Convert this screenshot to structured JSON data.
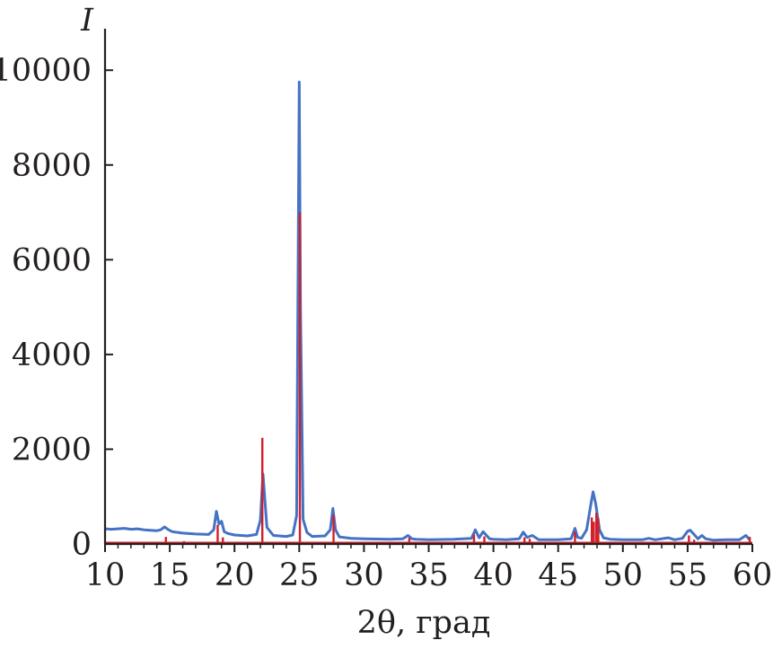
{
  "chart_data": {
    "type": "line",
    "title": "",
    "xlabel": "2θ, град",
    "ylabel": "I",
    "xlim": [
      10,
      60
    ],
    "ylim": [
      0,
      10800
    ],
    "x_ticks": [
      10,
      15,
      20,
      25,
      30,
      35,
      40,
      45,
      50,
      55,
      60
    ],
    "y_ticks": [
      0,
      2000,
      4000,
      6000,
      8000,
      10000
    ],
    "x_tick_labels": [
      "10",
      "15",
      "20",
      "25",
      "30",
      "35",
      "40",
      "45",
      "50",
      "55",
      "60"
    ],
    "y_tick_labels": [
      "0",
      "2000",
      "4000",
      "6000",
      "8000",
      "10000"
    ],
    "grid": false,
    "legend": "none",
    "series": [
      {
        "kind": "line",
        "color": "#4472c4",
        "x": [
          10.0,
          10.5,
          11.0,
          11.5,
          12.0,
          12.5,
          13.0,
          13.5,
          14.0,
          14.3,
          14.6,
          14.9,
          15.2,
          16.0,
          17.0,
          18.0,
          18.4,
          18.6,
          18.8,
          19.0,
          19.2,
          19.5,
          20.0,
          21.0,
          21.7,
          22.0,
          22.2,
          22.5,
          23.0,
          24.0,
          24.5,
          24.8,
          25.0,
          25.1,
          25.3,
          25.6,
          26.0,
          27.0,
          27.4,
          27.6,
          27.8,
          28.1,
          29.0,
          30.0,
          32.0,
          33.0,
          33.4,
          33.7,
          34.0,
          35.0,
          37.0,
          38.3,
          38.6,
          38.9,
          39.2,
          39.4,
          39.7,
          40.0,
          41.0,
          42.0,
          42.3,
          42.6,
          43.0,
          43.5,
          45.0,
          46.0,
          46.3,
          46.5,
          46.8,
          47.2,
          47.5,
          47.7,
          47.9,
          48.2,
          48.5,
          49.0,
          50.0,
          51.5,
          52.0,
          52.5,
          53.5,
          54.0,
          54.6,
          55.0,
          55.2,
          55.5,
          55.8,
          56.1,
          56.4,
          57.0,
          58.0,
          59.0,
          59.5,
          59.8
        ],
        "y": [
          320,
          310,
          320,
          330,
          310,
          320,
          300,
          290,
          280,
          300,
          360,
          300,
          260,
          230,
          210,
          200,
          300,
          690,
          420,
          480,
          260,
          220,
          190,
          170,
          200,
          500,
          1480,
          350,
          180,
          160,
          190,
          600,
          9750,
          5000,
          520,
          240,
          160,
          170,
          300,
          750,
          300,
          150,
          120,
          110,
          100,
          110,
          180,
          110,
          100,
          90,
          100,
          120,
          300,
          130,
          260,
          200,
          110,
          100,
          90,
          110,
          250,
          140,
          180,
          90,
          90,
          110,
          330,
          140,
          120,
          300,
          800,
          1100,
          850,
          300,
          130,
          100,
          90,
          90,
          120,
          90,
          130,
          90,
          120,
          270,
          290,
          200,
          110,
          180,
          110,
          80,
          90,
          90,
          180,
          90
        ]
      },
      {
        "kind": "sticks",
        "color": "#d21f2a",
        "peaks": [
          {
            "x": 14.7,
            "y": 150
          },
          {
            "x": 16.1,
            "y": 60
          },
          {
            "x": 18.7,
            "y": 400
          },
          {
            "x": 19.1,
            "y": 140
          },
          {
            "x": 22.15,
            "y": 2240
          },
          {
            "x": 25.05,
            "y": 7000
          },
          {
            "x": 27.65,
            "y": 620
          },
          {
            "x": 33.5,
            "y": 130
          },
          {
            "x": 38.5,
            "y": 200
          },
          {
            "x": 39.3,
            "y": 160
          },
          {
            "x": 42.4,
            "y": 140
          },
          {
            "x": 42.8,
            "y": 110
          },
          {
            "x": 46.3,
            "y": 260
          },
          {
            "x": 47.6,
            "y": 560
          },
          {
            "x": 47.75,
            "y": 470
          },
          {
            "x": 47.95,
            "y": 660
          },
          {
            "x": 48.1,
            "y": 540
          },
          {
            "x": 55.1,
            "y": 180
          },
          {
            "x": 55.5,
            "y": 90
          },
          {
            "x": 59.8,
            "y": 150
          }
        ]
      }
    ]
  }
}
